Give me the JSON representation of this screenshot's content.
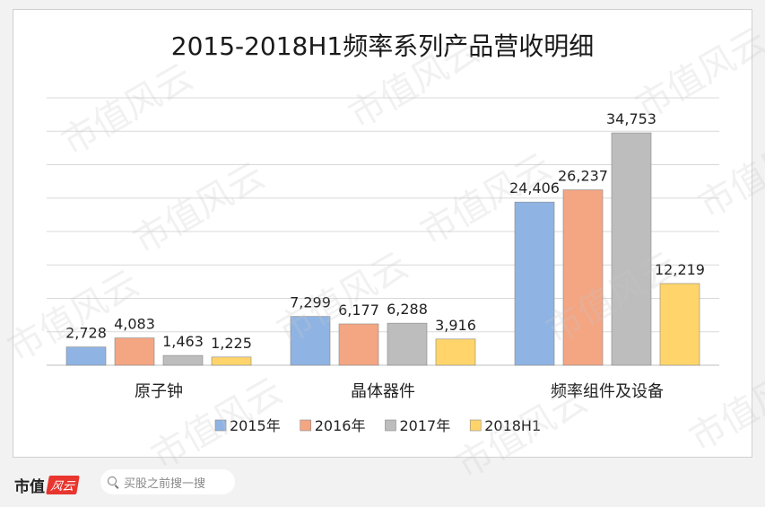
{
  "chart_data": {
    "type": "bar",
    "title": "2015-2018H1频率系列产品营收明细",
    "categories": [
      "原子钟",
      "晶体器件",
      "频率组件及设备"
    ],
    "series": [
      {
        "name": "2015年",
        "values": [
          2728,
          7299,
          24406
        ],
        "labels": [
          "2,728",
          "7,299",
          "24,406"
        ],
        "color": "#8fb4e3"
      },
      {
        "name": "2016年",
        "values": [
          4083,
          6177,
          26237
        ],
        "labels": [
          "4,083",
          "6,177",
          "26,237"
        ],
        "color": "#f4a582"
      },
      {
        "name": "2017年",
        "values": [
          1463,
          6288,
          34753
        ],
        "labels": [
          "1,463",
          "6,288",
          "34,753"
        ],
        "color": "#bdbdbd"
      },
      {
        "name": "2018H1",
        "values": [
          1225,
          3916,
          12219
        ],
        "labels": [
          "1,225",
          "3,916",
          "12,219"
        ],
        "color": "#ffd56b"
      }
    ],
    "ylim": [
      0,
      40000
    ],
    "grid": true,
    "legend": "bottom"
  },
  "footer": {
    "brand": "市值",
    "brand_badge": "风云",
    "search_placeholder": "买股之前搜一搜"
  },
  "watermark": "市值风云"
}
